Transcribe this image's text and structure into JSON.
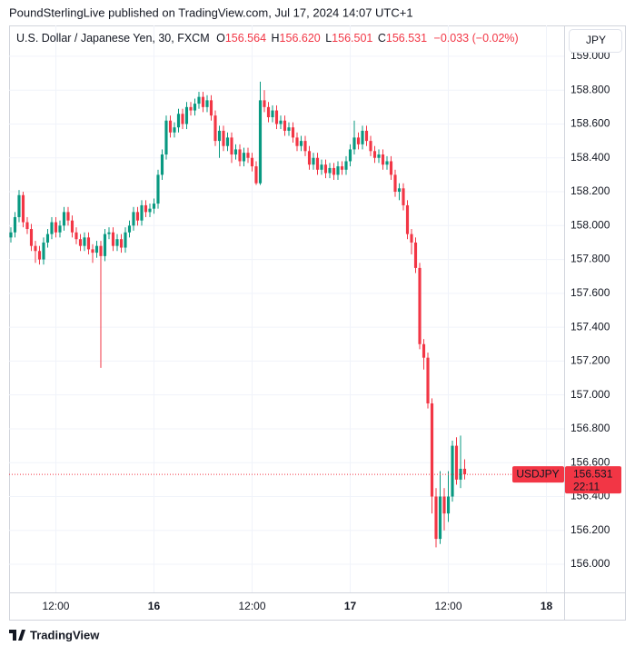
{
  "header": {
    "text": "PoundSterlingLive published on TradingView.com, Jul 17, 2024 14:07 UTC+1"
  },
  "footer": {
    "brand": "TradingView"
  },
  "chart_data": {
    "type": "candlestick",
    "title": "U.S. Dollar / Japanese Yen, 30, FXCM",
    "legend": {
      "o": "O",
      "h": "H",
      "l": "L",
      "c": "C",
      "open": {
        "value": 156.564,
        "label": "156.564"
      },
      "high": {
        "value": 156.62,
        "label": "156.620"
      },
      "low": {
        "value": 156.501,
        "label": "156.501"
      },
      "close": {
        "value": 156.531,
        "label": "156.531"
      },
      "change": {
        "value": -0.033,
        "label": "−0.033"
      },
      "change_pct": {
        "value": -0.02,
        "label": "(−0.02%)"
      }
    },
    "currency": "JPY",
    "price_tag": {
      "symbol": "USDJPY",
      "price": {
        "value": 156.531,
        "label": "156.531"
      },
      "countdown": "22:11"
    },
    "up_color": "#089981",
    "down_color": "#f23645",
    "grid": true,
    "xlim": [
      -0.44,
      135.33
    ],
    "xticks": [
      {
        "value": 11,
        "label": "12:00"
      },
      {
        "value": 35,
        "label": "16"
      },
      {
        "value": 59,
        "label": "12:00"
      },
      {
        "value": 83,
        "label": "17"
      },
      {
        "value": 107,
        "label": "12:00"
      },
      {
        "value": 131,
        "label": "18"
      }
    ],
    "ylim": [
      155.834,
      159.182
    ],
    "yticks": [
      {
        "value": 156,
        "label": "156.000"
      },
      {
        "value": 156.2,
        "label": "156.200"
      },
      {
        "value": 156.4,
        "label": "156.400"
      },
      {
        "value": 156.6,
        "label": "156.600"
      },
      {
        "value": 156.8,
        "label": "156.800"
      },
      {
        "value": 157,
        "label": "157.000"
      },
      {
        "value": 157.2,
        "label": "157.200"
      },
      {
        "value": 157.4,
        "label": "157.400"
      },
      {
        "value": 157.6,
        "label": "157.600"
      },
      {
        "value": 157.8,
        "label": "157.800"
      },
      {
        "value": 158,
        "label": "158.000"
      },
      {
        "value": 158.2,
        "label": "158.200"
      },
      {
        "value": 158.4,
        "label": "158.400"
      },
      {
        "value": 158.6,
        "label": "158.600"
      },
      {
        "value": 158.8,
        "label": "158.800"
      },
      {
        "value": 159,
        "label": "159.000"
      }
    ],
    "open": [
      157.93,
      157.96,
      158.05,
      158.18,
      158.02,
      157.98,
      157.88,
      157.85,
      157.8,
      157.9,
      157.95,
      158.02,
      157.96,
      158.0,
      158.08,
      158.03,
      157.96,
      157.92,
      157.88,
      157.93,
      157.86,
      157.84,
      157.88,
      157.82,
      157.95,
      157.96,
      157.88,
      157.92,
      157.87,
      157.96,
      158.0,
      158.08,
      158.03,
      158.12,
      158.08,
      158.1,
      158.13,
      158.3,
      158.42,
      158.62,
      158.55,
      158.58,
      158.66,
      158.6,
      158.7,
      158.68,
      158.72,
      158.76,
      158.7,
      158.74,
      158.65,
      158.5,
      158.56,
      158.47,
      158.52,
      158.42,
      158.45,
      158.38,
      158.43,
      158.4,
      158.35,
      158.25,
      158.74,
      158.7,
      158.64,
      158.68,
      158.6,
      158.62,
      158.56,
      158.58,
      158.52,
      158.47,
      158.5,
      158.44,
      158.36,
      158.4,
      158.33,
      158.36,
      158.31,
      158.34,
      158.3,
      158.35,
      158.33,
      158.38,
      158.45,
      158.52,
      158.48,
      158.56,
      158.5,
      158.44,
      158.4,
      158.42,
      158.36,
      158.38,
      158.3,
      158.2,
      158.22,
      158.12,
      157.95,
      157.9,
      157.75,
      157.3,
      157.22,
      156.95,
      156.4,
      156.15,
      156.4,
      156.3,
      156.4,
      156.7,
      156.5,
      156.564
    ],
    "high": [
      157.99,
      158.08,
      158.21,
      158.2,
      158.05,
      158.01,
      157.91,
      157.88,
      157.93,
      157.98,
      158.05,
      158.05,
      158.03,
      158.11,
      158.11,
      158.06,
      157.99,
      157.95,
      157.96,
      157.96,
      157.89,
      157.91,
      157.91,
      157.98,
      157.99,
      157.99,
      157.95,
      157.95,
      157.99,
      158.03,
      158.11,
      158.11,
      158.15,
      158.15,
      158.13,
      158.16,
      158.33,
      158.45,
      158.65,
      158.65,
      158.61,
      158.69,
      158.69,
      158.73,
      158.73,
      158.75,
      158.79,
      158.79,
      158.77,
      158.77,
      158.68,
      158.59,
      158.59,
      158.55,
      158.55,
      158.48,
      158.48,
      158.46,
      158.46,
      158.43,
      158.38,
      158.85,
      158.8,
      158.73,
      158.71,
      158.71,
      158.65,
      158.65,
      158.61,
      158.61,
      158.55,
      158.53,
      158.53,
      158.47,
      158.43,
      158.43,
      158.39,
      158.39,
      158.37,
      158.37,
      158.38,
      158.38,
      158.41,
      158.48,
      158.62,
      158.55,
      158.59,
      158.59,
      158.53,
      158.47,
      158.45,
      158.45,
      158.41,
      158.41,
      158.33,
      158.25,
      158.25,
      158.15,
      157.98,
      157.93,
      157.78,
      157.33,
      157.25,
      156.98,
      156.45,
      156.55,
      156.45,
      156.55,
      156.73,
      156.75,
      156.76,
      156.62
    ],
    "low": [
      157.9,
      157.93,
      158.02,
      157.99,
      157.95,
      157.85,
      157.78,
      157.77,
      157.77,
      157.87,
      157.92,
      157.93,
      157.93,
      157.97,
      158.0,
      157.93,
      157.89,
      157.85,
      157.85,
      157.83,
      157.78,
      157.81,
      157.16,
      157.79,
      157.92,
      157.85,
      157.85,
      157.84,
      157.84,
      157.93,
      157.97,
      158.0,
      158.0,
      158.05,
      158.05,
      158.07,
      158.1,
      158.27,
      158.39,
      158.52,
      158.52,
      158.55,
      158.57,
      158.57,
      158.65,
      158.65,
      158.69,
      158.67,
      158.67,
      158.62,
      158.47,
      158.4,
      158.44,
      158.44,
      158.37,
      158.39,
      158.35,
      158.35,
      158.37,
      158.32,
      158.24,
      158.24,
      158.67,
      158.61,
      158.61,
      158.57,
      158.57,
      158.53,
      158.53,
      158.49,
      158.44,
      158.44,
      158.41,
      158.33,
      158.33,
      158.3,
      158.3,
      158.28,
      158.28,
      158.27,
      158.27,
      158.3,
      158.3,
      158.35,
      158.42,
      158.45,
      158.45,
      158.47,
      158.41,
      158.37,
      158.37,
      158.33,
      158.33,
      158.27,
      158.17,
      158.15,
      158.09,
      157.92,
      157.83,
      157.72,
      157.27,
      157.15,
      156.92,
      156.3,
      156.1,
      156.12,
      156.2,
      156.25,
      156.37,
      156.47,
      156.45,
      156.501
    ],
    "close": [
      157.96,
      158.05,
      158.18,
      158.02,
      157.98,
      157.88,
      157.85,
      157.8,
      157.9,
      157.95,
      158.02,
      157.96,
      158.0,
      158.08,
      158.03,
      157.96,
      157.92,
      157.88,
      157.93,
      157.86,
      157.84,
      157.88,
      157.82,
      157.95,
      157.96,
      157.88,
      157.92,
      157.87,
      157.96,
      158.0,
      158.08,
      158.03,
      158.12,
      158.08,
      158.1,
      158.13,
      158.3,
      158.42,
      158.62,
      158.55,
      158.58,
      158.66,
      158.6,
      158.7,
      158.68,
      158.72,
      158.76,
      158.7,
      158.74,
      158.65,
      158.5,
      158.56,
      158.47,
      158.52,
      158.42,
      158.45,
      158.38,
      158.43,
      158.4,
      158.35,
      158.25,
      158.74,
      158.7,
      158.64,
      158.68,
      158.6,
      158.62,
      158.56,
      158.58,
      158.52,
      158.47,
      158.5,
      158.44,
      158.36,
      158.4,
      158.33,
      158.36,
      158.31,
      158.34,
      158.3,
      158.35,
      158.33,
      158.38,
      158.45,
      158.52,
      158.48,
      158.56,
      158.5,
      158.44,
      158.4,
      158.42,
      158.36,
      158.38,
      158.3,
      158.2,
      158.22,
      158.12,
      157.95,
      157.9,
      157.75,
      157.3,
      157.22,
      156.95,
      156.4,
      156.15,
      156.4,
      156.3,
      156.4,
      156.7,
      156.5,
      156.564,
      156.531
    ]
  }
}
